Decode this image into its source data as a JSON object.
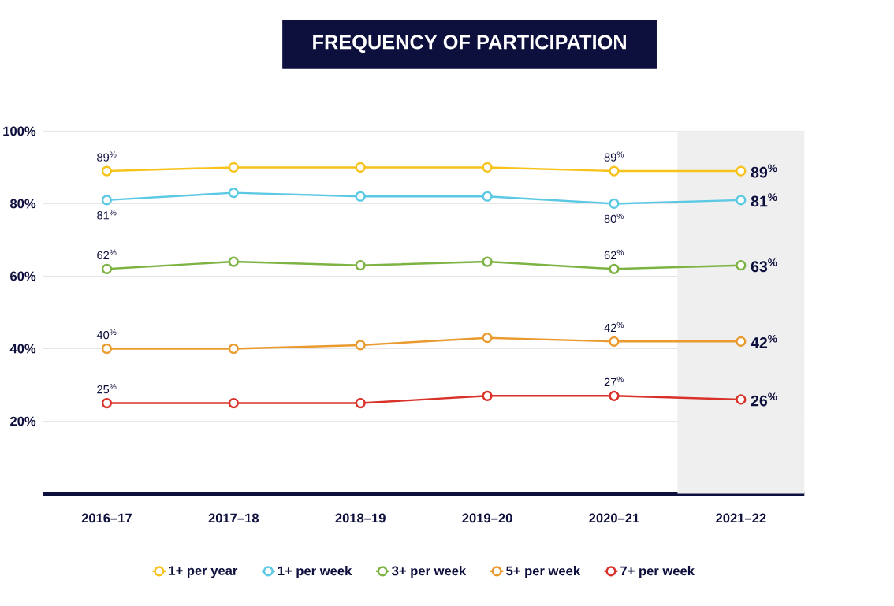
{
  "chart_data": {
    "type": "line",
    "title": "FREQUENCY OF PARTICIPATION",
    "categories": [
      "2016–17",
      "2017–18",
      "2018–19",
      "2019–20",
      "2020–21",
      "2021–22"
    ],
    "series": [
      {
        "name": "1+ per year",
        "color": "#f7c21a",
        "values": [
          89,
          90,
          90,
          90,
          89,
          89
        ],
        "value_labels": [
          "89$^{%}$",
          null,
          null,
          null,
          "89$^{%}$",
          "89$^{%}$"
        ]
      },
      {
        "name": "1+ per week",
        "color": "#5bc8e4",
        "values": [
          81,
          83,
          82,
          82,
          80,
          81
        ],
        "value_labels": [
          "81$^{%}$",
          null,
          null,
          null,
          "80$^{%}$",
          "81$^{%}$"
        ]
      },
      {
        "name": "3+ per week",
        "color": "#7cb342",
        "values": [
          62,
          64,
          63,
          64,
          62,
          63
        ],
        "value_labels": [
          "62$^{%}$",
          null,
          null,
          null,
          "62$^{%}$",
          "63$^{%}$"
        ]
      },
      {
        "name": "5+ per week",
        "color": "#eb9a2f",
        "values": [
          40,
          40,
          41,
          43,
          42,
          42
        ],
        "value_labels": [
          "40$^{%}$",
          null,
          null,
          null,
          "42$^{%}$",
          "42$^{%}$"
        ]
      },
      {
        "name": "7+ per week",
        "color": "#d8322a",
        "values": [
          25,
          25,
          25,
          27,
          27,
          26
        ],
        "value_labels": [
          "25$^{%}$",
          null,
          null,
          null,
          "27$^{%}$",
          "26$^{%}$"
        ]
      }
    ],
    "ylim": [
      0,
      100
    ],
    "yticks": [
      {
        "value": 20,
        "label": "20%"
      },
      {
        "value": 40,
        "label": "40%"
      },
      {
        "value": 60,
        "label": "60%"
      },
      {
        "value": 80,
        "label": "80%"
      },
      {
        "value": 100,
        "label": "100%"
      }
    ],
    "bands": [
      {
        "axis": "x",
        "from": "2021–22",
        "to": "2021–22",
        "color": "#efefef"
      }
    ],
    "grid": "y",
    "legend": "bottom",
    "marker": "circle",
    "line_style": "solid"
  }
}
